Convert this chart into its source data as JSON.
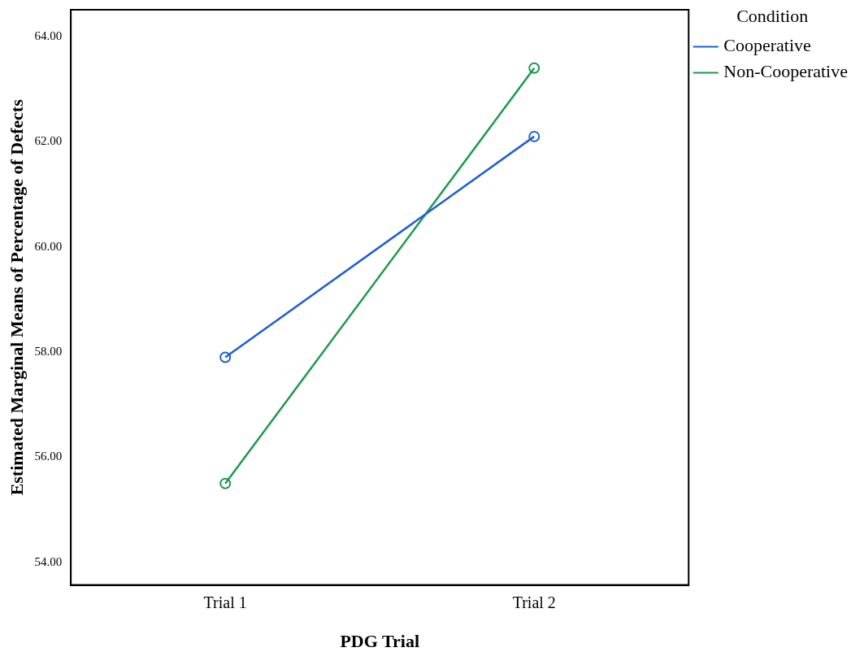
{
  "chart_data": {
    "type": "line",
    "xlabel": "PDG Trial",
    "ylabel": "Estimated Marginal Means of Percentage of Defects",
    "legend_title": "Condition",
    "categories": [
      "Trial 1",
      "Trial 2"
    ],
    "series": [
      {
        "name": "Cooperative",
        "color": "#1f5fd0",
        "values": [
          57.9,
          62.1
        ]
      },
      {
        "name": "Non-Cooperative",
        "color": "#1a9a4a",
        "values": [
          55.5,
          63.4
        ]
      }
    ],
    "ylim": [
      53.57,
      64.51
    ],
    "yticks": [
      {
        "value": 54,
        "label": "54.00"
      },
      {
        "value": 56,
        "label": "56.00"
      },
      {
        "value": 58,
        "label": "58.00"
      },
      {
        "value": 60,
        "label": "60.00"
      },
      {
        "value": 62,
        "label": "62.00"
      },
      {
        "value": 64,
        "label": "64.00"
      }
    ],
    "grid": false,
    "legend": "right",
    "marker": "circle",
    "line_style": "solid"
  }
}
